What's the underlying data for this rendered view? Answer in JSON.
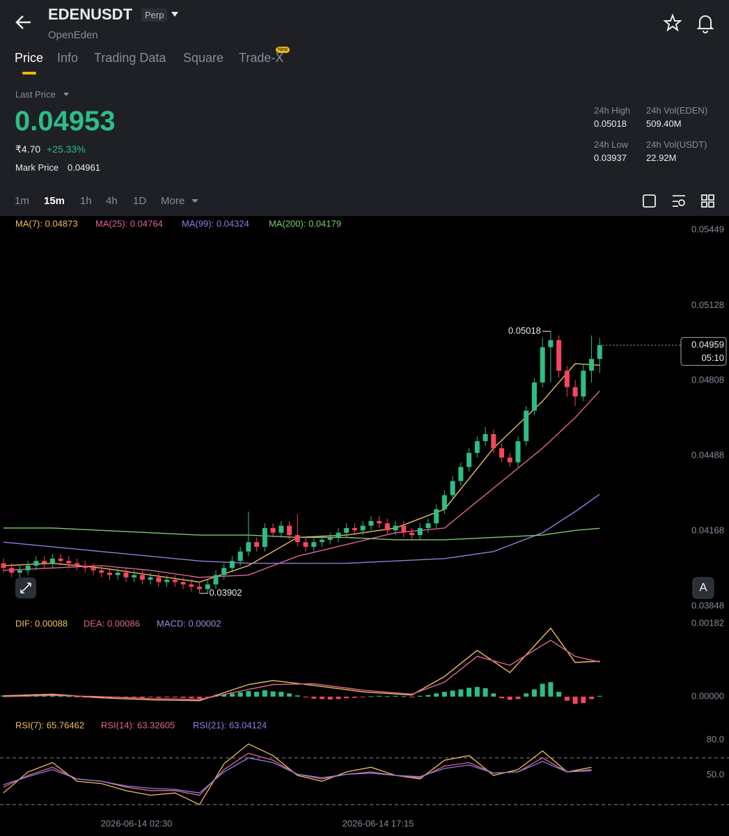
{
  "header": {
    "symbol": "EDENUSDT",
    "badge": "Perp",
    "name": "OpenEden",
    "tabs": [
      "Price",
      "Info",
      "Trading Data",
      "Square",
      "Trade-X"
    ],
    "new_badge": "New"
  },
  "price": {
    "label": "Last Price",
    "last": "0.04953",
    "fiat": "₹4.70",
    "change": "+25.33%",
    "mark_label": "Mark Price",
    "mark": "0.04961"
  },
  "stats": [
    {
      "label": "24h High",
      "value": "0.05018"
    },
    {
      "label": "24h Vol(EDEN)",
      "value": "509.40M"
    },
    {
      "label": "24h Low",
      "value": "0.03937"
    },
    {
      "label": "24h Vol(USDT)",
      "value": "22.92M"
    }
  ],
  "intervals": [
    "1m",
    "15m",
    "1h",
    "4h",
    "1D",
    "More"
  ],
  "chart": {
    "type": "candlestick",
    "ylim": [
      0.03818,
      0.05494
    ],
    "yticks": [
      0.05449,
      0.05128,
      0.04808,
      0.04488,
      0.04168,
      0.03848
    ],
    "candles": [
      [
        0.0403,
        0.0405,
        0.0399,
        0.0401
      ],
      [
        0.0401,
        0.0403,
        0.0397,
        0.0399
      ],
      [
        0.0399,
        0.0402,
        0.0397,
        0.04
      ],
      [
        0.04,
        0.0404,
        0.0398,
        0.0402
      ],
      [
        0.0402,
        0.0406,
        0.04,
        0.0404
      ],
      [
        0.0404,
        0.0406,
        0.0401,
        0.0403
      ],
      [
        0.0403,
        0.0407,
        0.0401,
        0.0405
      ],
      [
        0.0405,
        0.0407,
        0.0402,
        0.0404
      ],
      [
        0.0404,
        0.0406,
        0.0401,
        0.0403
      ],
      [
        0.0403,
        0.0405,
        0.04,
        0.0402
      ],
      [
        0.0402,
        0.0404,
        0.0399,
        0.0401
      ],
      [
        0.0401,
        0.0403,
        0.0398,
        0.04
      ],
      [
        0.04,
        0.0402,
        0.0397,
        0.0399
      ],
      [
        0.0399,
        0.0401,
        0.0396,
        0.0398
      ],
      [
        0.0398,
        0.0401,
        0.0396,
        0.0399
      ],
      [
        0.0399,
        0.0401,
        0.0395,
        0.0397
      ],
      [
        0.0397,
        0.04,
        0.0395,
        0.0398
      ],
      [
        0.0398,
        0.04,
        0.0394,
        0.0396
      ],
      [
        0.0396,
        0.0399,
        0.0394,
        0.0397
      ],
      [
        0.0397,
        0.0399,
        0.0393,
        0.0395
      ],
      [
        0.0395,
        0.0398,
        0.0393,
        0.0396
      ],
      [
        0.0396,
        0.0398,
        0.0393,
        0.0395
      ],
      [
        0.0395,
        0.0397,
        0.0392,
        0.0394
      ],
      [
        0.0394,
        0.0396,
        0.0391,
        0.0393
      ],
      [
        0.0393,
        0.0395,
        0.03902,
        0.0392
      ],
      [
        0.0392,
        0.0396,
        0.039,
        0.0394
      ],
      [
        0.0394,
        0.04,
        0.0392,
        0.0398
      ],
      [
        0.0398,
        0.0403,
        0.0396,
        0.0401
      ],
      [
        0.0401,
        0.0406,
        0.0399,
        0.0404
      ],
      [
        0.0404,
        0.041,
        0.0402,
        0.0408
      ],
      [
        0.0408,
        0.0425,
        0.0406,
        0.0412
      ],
      [
        0.0412,
        0.0414,
        0.0408,
        0.041
      ],
      [
        0.041,
        0.042,
        0.0408,
        0.0418
      ],
      [
        0.0418,
        0.042,
        0.0414,
        0.0416
      ],
      [
        0.0416,
        0.0421,
        0.0414,
        0.0419
      ],
      [
        0.0419,
        0.0421,
        0.0413,
        0.0415
      ],
      [
        0.0415,
        0.0424,
        0.041,
        0.0412
      ],
      [
        0.0412,
        0.0414,
        0.0408,
        0.041
      ],
      [
        0.041,
        0.0414,
        0.0408,
        0.0412
      ],
      [
        0.0412,
        0.0415,
        0.041,
        0.0413
      ],
      [
        0.0413,
        0.0416,
        0.0411,
        0.0414
      ],
      [
        0.0414,
        0.0418,
        0.0412,
        0.0416
      ],
      [
        0.0416,
        0.042,
        0.0414,
        0.0418
      ],
      [
        0.0418,
        0.042,
        0.0415,
        0.0417
      ],
      [
        0.0417,
        0.0421,
        0.0415,
        0.0419
      ],
      [
        0.0419,
        0.0423,
        0.0417,
        0.0421
      ],
      [
        0.0421,
        0.0423,
        0.0418,
        0.042
      ],
      [
        0.042,
        0.0422,
        0.0415,
        0.0417
      ],
      [
        0.0417,
        0.0421,
        0.0415,
        0.0419
      ],
      [
        0.0419,
        0.0421,
        0.0414,
        0.0416
      ],
      [
        0.0416,
        0.0418,
        0.0413,
        0.0415
      ],
      [
        0.0415,
        0.042,
        0.0413,
        0.0418
      ],
      [
        0.0418,
        0.0422,
        0.0416,
        0.042
      ],
      [
        0.042,
        0.0428,
        0.0418,
        0.0426
      ],
      [
        0.0426,
        0.0434,
        0.0424,
        0.0432
      ],
      [
        0.0432,
        0.044,
        0.043,
        0.0438
      ],
      [
        0.0438,
        0.0446,
        0.0436,
        0.0444
      ],
      [
        0.0444,
        0.0452,
        0.0442,
        0.045
      ],
      [
        0.045,
        0.0457,
        0.0448,
        0.0455
      ],
      [
        0.0455,
        0.0461,
        0.0453,
        0.0458
      ],
      [
        0.0458,
        0.046,
        0.045,
        0.0452
      ],
      [
        0.0452,
        0.0454,
        0.0446,
        0.0448
      ],
      [
        0.0448,
        0.045,
        0.0444,
        0.0446
      ],
      [
        0.0446,
        0.0457,
        0.0444,
        0.0455
      ],
      [
        0.0455,
        0.047,
        0.0453,
        0.0468
      ],
      [
        0.0468,
        0.0482,
        0.0466,
        0.048
      ],
      [
        0.048,
        0.0499,
        0.0478,
        0.0495
      ],
      [
        0.0495,
        0.05018,
        0.048,
        0.0498
      ],
      [
        0.0498,
        0.05,
        0.0482,
        0.0485
      ],
      [
        0.0485,
        0.0487,
        0.0474,
        0.0478
      ],
      [
        0.0478,
        0.0481,
        0.047,
        0.0474
      ],
      [
        0.0474,
        0.0488,
        0.0472,
        0.0485
      ],
      [
        0.0485,
        0.05,
        0.048,
        0.049
      ],
      [
        0.049,
        0.0499,
        0.0484,
        0.04959
      ]
    ],
    "up_color": "#2ebd85",
    "down_color": "#f6465d",
    "ma": [
      {
        "name": "MA(7): 0.04873",
        "color": "#f0c05a",
        "index": [
          0,
          6,
          12,
          18,
          24,
          30,
          36,
          42,
          48,
          54,
          60,
          66,
          70,
          73
        ],
        "values": [
          0.0402,
          0.0403,
          0.0401,
          0.0398,
          0.0395,
          0.0402,
          0.0414,
          0.0415,
          0.0418,
          0.0426,
          0.0452,
          0.0472,
          0.0488,
          0.04873
        ]
      },
      {
        "name": "MA(25): 0.04764",
        "color": "#e2649d",
        "index": [
          0,
          6,
          12,
          18,
          24,
          30,
          36,
          42,
          48,
          54,
          60,
          66,
          70,
          73
        ],
        "values": [
          0.04,
          0.0401,
          0.0402,
          0.04,
          0.0397,
          0.0398,
          0.0406,
          0.0411,
          0.0416,
          0.0418,
          0.0435,
          0.0452,
          0.0465,
          0.04764
        ]
      },
      {
        "name": "MA(99): 0.04324",
        "color": "#8e82e0",
        "index": [
          0,
          6,
          12,
          18,
          24,
          30,
          36,
          42,
          48,
          54,
          60,
          66,
          70,
          73
        ],
        "values": [
          0.0412,
          0.041,
          0.0408,
          0.0406,
          0.0404,
          0.0403,
          0.0403,
          0.0403,
          0.0404,
          0.0405,
          0.0408,
          0.0416,
          0.0425,
          0.04324
        ]
      },
      {
        "name": "MA(200): 0.04179",
        "color": "#7ccf6e",
        "index": [
          0,
          6,
          12,
          18,
          24,
          30,
          36,
          42,
          48,
          54,
          60,
          66,
          70,
          73
        ],
        "values": [
          0.0418,
          0.0418,
          0.0417,
          0.0416,
          0.0415,
          0.0415,
          0.0414,
          0.0414,
          0.0413,
          0.0413,
          0.0414,
          0.0415,
          0.0417,
          0.04179
        ]
      }
    ],
    "last": 0.04959,
    "countdown": "05:10",
    "time_labels": [
      "2026-06-14 02:30",
      "2026-06-14 17:15"
    ],
    "macd": {
      "ylim": [
        -0.00052,
        0.00199
      ],
      "yticks": [
        0.00182,
        {
          "value": 0,
          "label": "0.00000"
        }
      ],
      "series": [
        {
          "name": "DIF: 0.00088",
          "color": "#f0c05a",
          "index": [
            0,
            6,
            12,
            18,
            24,
            30,
            33,
            38,
            44,
            50,
            54,
            58,
            62,
            67,
            70,
            73
          ],
          "values": [
            2e-05,
            6e-05,
            -3e-05,
            -8e-05,
            -0.0001,
            0.0003,
            0.0004,
            0.00028,
            0.00012,
            4e-05,
            0.0005,
            0.00115,
            0.0006,
            0.0017,
            0.00085,
            0.00088
          ]
        },
        {
          "name": "DEA: 0.00086",
          "color": "#e2649d",
          "index": [
            0,
            6,
            12,
            18,
            24,
            30,
            33,
            38,
            44,
            50,
            54,
            58,
            62,
            67,
            70,
            73
          ],
          "values": [
            0,
            3e-05,
            0,
            -5e-05,
            -7e-05,
            0.00018,
            0.0003,
            0.00032,
            0.00016,
            6e-05,
            0.00036,
            0.001,
            0.00078,
            0.0014,
            0.001,
            0.00086
          ]
        }
      ],
      "histogram_name": "MACD: 0.00002",
      "histogram_color": "#9b8fe0",
      "histogram": [
        3e-05,
        2e-05,
        4e-05,
        5e-05,
        6e-05,
        4e-05,
        5e-05,
        3e-05,
        1e-05,
        -1e-05,
        -2e-05,
        -3e-05,
        -3e-05,
        -4e-05,
        -2e-05,
        -3e-05,
        -2e-05,
        -3e-05,
        -2e-05,
        -3e-05,
        -2e-05,
        -2e-05,
        -3e-05,
        -4e-05,
        -5e-05,
        -2e-05,
        2e-05,
        5e-05,
        8e-05,
        0.00011,
        0.00014,
        0.00012,
        0.00016,
        0.00013,
        0.00012,
        8e-05,
        3e-05,
        -2e-05,
        -5e-05,
        -6e-05,
        -7e-05,
        -6e-05,
        -4e-05,
        -3e-05,
        -1e-05,
        1e-05,
        2e-05,
        1e-05,
        2e-05,
        1e-05,
        -1e-05,
        2e-05,
        4e-05,
        8e-05,
        0.00012,
        0.00015,
        0.00018,
        0.00022,
        0.00024,
        0.00021,
        8e-05,
        -4e-05,
        -8e-05,
        -6e-05,
        8e-05,
        0.00018,
        0.00032,
        0.00036,
        0.00012,
        -0.0001,
        -0.00018,
        -0.00016,
        -6e-05,
        2e-05
      ]
    },
    "rsi": {
      "ylim": [
        21,
        101.6
      ],
      "yticks": [
        {
          "value": 80,
          "label": "80.0"
        },
        {
          "value": 50,
          "label": "50.0"
        }
      ],
      "levels": [
        70,
        30
      ],
      "index": [
        0,
        3,
        6,
        9,
        12,
        15,
        18,
        21,
        24,
        27,
        30,
        33,
        36,
        39,
        42,
        45,
        48,
        51,
        54,
        57,
        60,
        63,
        66,
        69,
        72
      ],
      "series": [
        {
          "name": "RSI(7): 65.76462",
          "color": "#f0c05a",
          "values": [
            40,
            58,
            66,
            50,
            48,
            42,
            38,
            40,
            30,
            65,
            82,
            72,
            55,
            50,
            58,
            62,
            55,
            52,
            68,
            72,
            55,
            60,
            76,
            58,
            62
          ]
        },
        {
          "name": "RSI(14): 63.32605",
          "color": "#e2649d",
          "values": [
            45,
            55,
            62,
            52,
            50,
            45,
            42,
            42,
            38,
            60,
            74,
            68,
            56,
            52,
            56,
            58,
            55,
            53,
            63,
            66,
            57,
            58,
            70,
            58,
            60
          ]
        },
        {
          "name": "RSI(21): 63.04124",
          "color": "#8e82e0",
          "values": [
            47,
            54,
            60,
            52,
            50,
            46,
            44,
            43,
            40,
            58,
            70,
            66,
            56,
            53,
            56,
            57,
            55,
            54,
            61,
            64,
            57,
            58,
            67,
            58,
            59
          ]
        }
      ]
    }
  }
}
